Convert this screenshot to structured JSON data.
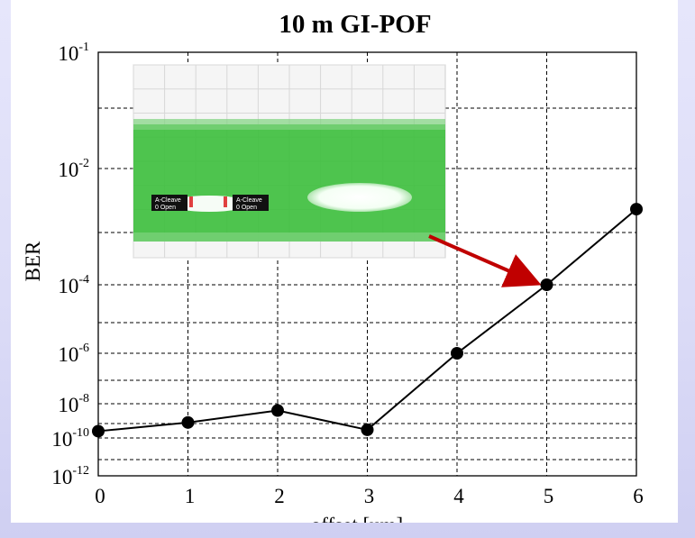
{
  "chart_data": {
    "type": "line",
    "title": "10 m GI-POF",
    "xlabel": "offset [um]",
    "ylabel": "BER",
    "y_scale": "log",
    "xlim": [
      0,
      6
    ],
    "ylim": [
      1e-12,
      0.1
    ],
    "x_ticks": [
      "0",
      "1",
      "2",
      "3",
      "4",
      "5",
      "6"
    ],
    "y_ticks": [
      {
        "base": "10",
        "exp": "-1",
        "value": 0.1
      },
      {
        "base": "10",
        "exp": "-2",
        "value": 0.01
      },
      {
        "base": "10",
        "exp": "-4",
        "value": 0.0001
      },
      {
        "base": "10",
        "exp": "-6",
        "value": 1e-06
      },
      {
        "base": "10",
        "exp": "-8",
        "value": 1e-08
      },
      {
        "base": "10",
        "exp": "-10",
        "value": 1e-10
      },
      {
        "base": "10",
        "exp": "-12",
        "value": 1e-12
      }
    ],
    "grid": true,
    "series": [
      {
        "x": [
          0,
          1,
          2,
          3,
          4,
          5,
          6
        ],
        "y": [
          2.5e-10,
          8e-10,
          4e-09,
          3e-10,
          1e-06,
          0.0001,
          0.002
        ]
      }
    ],
    "colors": {
      "line": "#000000",
      "marker": "#000000",
      "arrow": "#c00000",
      "eye": "#3fbf3f"
    },
    "annotation": {
      "type": "eye-diagram-inset",
      "points_to_x": 5,
      "labels": [
        "A-Cleave",
        "0 Open",
        "A-Cleave",
        "0 Open"
      ]
    }
  }
}
